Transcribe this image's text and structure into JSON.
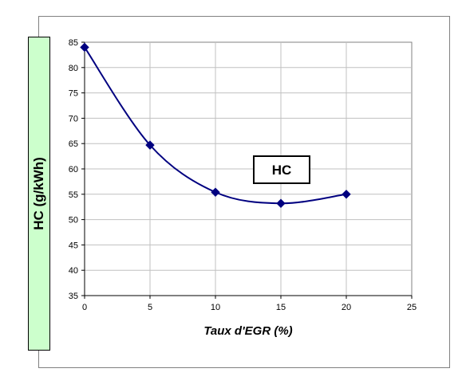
{
  "chart_data": {
    "type": "line",
    "title": "",
    "xlabel": "Taux d'EGR (%)",
    "ylabel": "HC (g/kWh)",
    "xlim": [
      0,
      25
    ],
    "ylim": [
      35,
      85
    ],
    "xticks": [
      0,
      5,
      10,
      15,
      20,
      25
    ],
    "yticks": [
      35,
      40,
      45,
      50,
      55,
      60,
      65,
      70,
      75,
      80,
      85
    ],
    "grid": true,
    "legend": "none",
    "annotation": "HC",
    "series": [
      {
        "x": [
          0,
          5,
          10,
          15,
          20
        ],
        "y": [
          84,
          64.7,
          55.4,
          53.2,
          55
        ],
        "color": "#000080",
        "marker": "diamond",
        "smooth": true
      }
    ]
  }
}
